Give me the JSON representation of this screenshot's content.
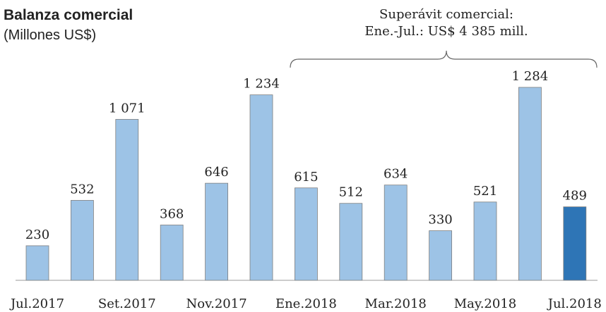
{
  "chart_data": {
    "type": "bar",
    "title": "Balanza comercial",
    "subtitle": "(Millones US$)",
    "annotation": [
      "Superávit comercial:",
      "Ene.-Jul.: US$ 4 385 mill."
    ],
    "categories": [
      "Jul.2017",
      null,
      "Set.2017",
      null,
      "Nov.2017",
      null,
      "Ene.2018",
      null,
      "Mar.2018",
      null,
      "May.2018",
      null,
      "Jul.2018"
    ],
    "values": [
      230,
      532,
      1071,
      368,
      646,
      1234,
      615,
      512,
      634,
      330,
      521,
      1284,
      489
    ],
    "value_labels": [
      "230",
      "532",
      "1 071",
      "368",
      "646",
      "1 234",
      "615",
      "512",
      "634",
      "330",
      "521",
      "1 284",
      "489"
    ],
    "colors": [
      "#9dc3e6",
      "#9dc3e6",
      "#9dc3e6",
      "#9dc3e6",
      "#9dc3e6",
      "#9dc3e6",
      "#9dc3e6",
      "#9dc3e6",
      "#9dc3e6",
      "#9dc3e6",
      "#9dc3e6",
      "#9dc3e6",
      "#2e75b6"
    ]
  }
}
